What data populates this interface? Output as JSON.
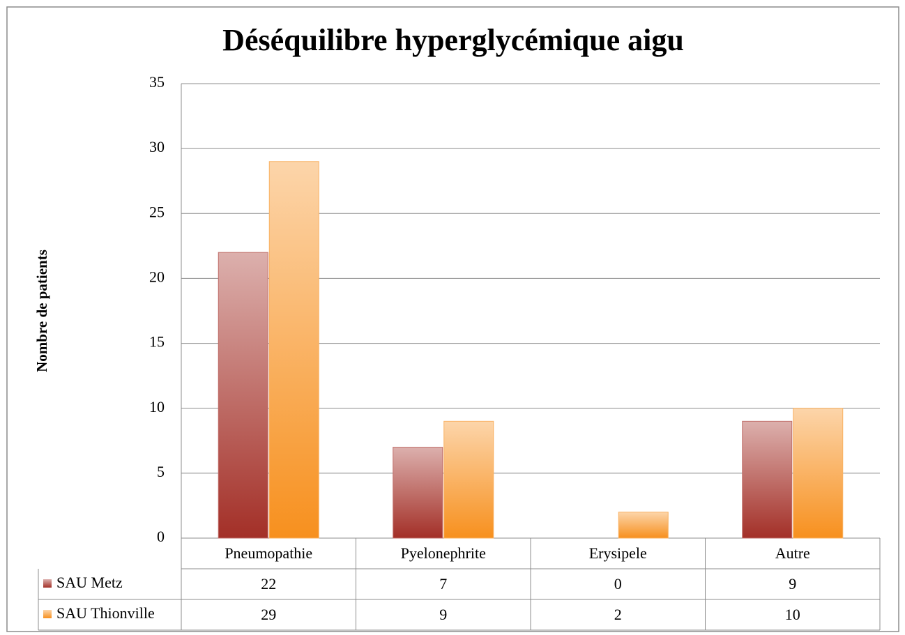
{
  "chart_data": {
    "type": "bar",
    "title": "Déséquilibre hyperglycémique aigu",
    "y_label": "Nombre de patients",
    "categories": [
      "Pneumopathie",
      "Pyelonephrite",
      "Erysipele",
      "Autre"
    ],
    "series": [
      {
        "name": "SAU Metz",
        "color": "#a32f27",
        "values": [
          22,
          7,
          0,
          9
        ]
      },
      {
        "name": "SAU Thionville",
        "color": "#f7901e",
        "values": [
          29,
          9,
          2,
          10
        ]
      }
    ],
    "ylim": [
      0,
      35
    ],
    "yticks": [
      0,
      5,
      10,
      15,
      20,
      25,
      30,
      35
    ],
    "grid": true
  }
}
